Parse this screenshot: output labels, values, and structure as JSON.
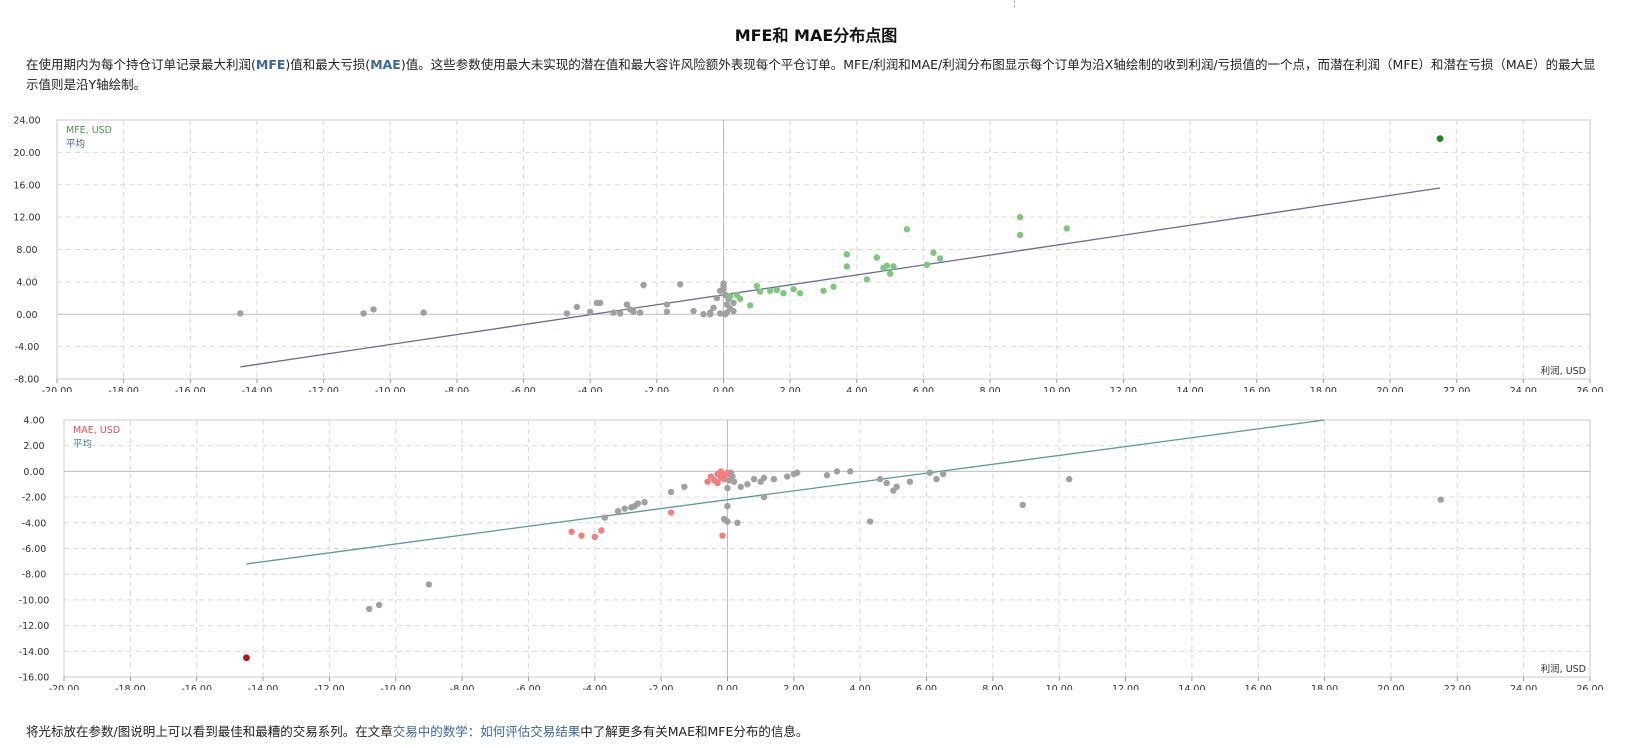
{
  "page": {
    "title": "MFE和 MAE分布点图",
    "desc_parts": [
      {
        "t": "在使用期内为每个持仓订单记录最大利润(",
        "hl": false
      },
      {
        "t": "MFE",
        "hl": true
      },
      {
        "t": ")值和最大亏损(",
        "hl": false
      },
      {
        "t": "MAE",
        "hl": true
      },
      {
        "t": ")值。这些参数使用最大未实现的潜在值和最大容许风险额外表现每个平仓订单。MFE/利润和MAE/利润分布图显示每个订单为沿X轴绘制的收到利润/亏损值的一个点，而潜在利润（MFE）和潜在亏损（MAE）的最大显示值则是沿Y轴绘制。",
        "hl": false
      }
    ],
    "footer_before": "将光标放在参数/图说明上可以看到最佳和最糟的交易系列。在文章",
    "footer_link": "交易中的数学：如何评估交易结果",
    "footer_after": "中了解更多有关MAE和MFE分布的信息。"
  },
  "chart_data": [
    {
      "type": "scatter",
      "legend_label": "MFE, USD",
      "avg_label": "平均",
      "xlabel": "利润, USD",
      "xlim": [
        -20,
        26
      ],
      "ylim": [
        -8,
        24
      ],
      "xticks": [
        "-20.00",
        "-18.00",
        "-16.00",
        "-14.00",
        "-12.00",
        "-10.00",
        "-8.00",
        "-6.00",
        "-4.00",
        "-2.00",
        "0.00",
        "2.00",
        "4.00",
        "6.00",
        "8.00",
        "10.00",
        "12.00",
        "14.00",
        "16.00",
        "18.00",
        "20.00",
        "22.00",
        "24.00",
        "26.00"
      ],
      "yticks": [
        "-8.00",
        "-4.00",
        "0.00",
        "4.00",
        "8.00",
        "12.00",
        "16.00",
        "20.00",
        "24.00"
      ],
      "colors": {
        "legend": "#4a9a4a",
        "avg": "#3a5fa0",
        "line": "#6a6a9a",
        "loss": "#a0a0a0",
        "profit": "#7cc87c",
        "best": "#1e8a1e"
      },
      "avg_line": [
        [
          -14.5,
          -6.5
        ],
        [
          21.5,
          15.6
        ]
      ],
      "best": [
        [
          21.5,
          21.7
        ]
      ],
      "loss_points": [
        [
          -14.5,
          0.1
        ],
        [
          -10.8,
          0.1
        ],
        [
          -10.5,
          0.6
        ],
        [
          -9.0,
          0.2
        ],
        [
          -4.7,
          0.1
        ],
        [
          -4.4,
          0.9
        ],
        [
          -4.0,
          0.3
        ],
        [
          -3.8,
          1.4
        ],
        [
          -3.7,
          1.4
        ],
        [
          -3.3,
          0.2
        ],
        [
          -3.1,
          0.1
        ],
        [
          -2.9,
          1.2
        ],
        [
          -2.8,
          0.6
        ],
        [
          -2.7,
          0.3
        ],
        [
          -2.5,
          0.2
        ],
        [
          -2.4,
          3.6
        ],
        [
          -1.7,
          1.2
        ],
        [
          -1.7,
          0.3
        ],
        [
          -1.3,
          3.7
        ],
        [
          -0.9,
          0.4
        ],
        [
          -0.6,
          0.0
        ],
        [
          -0.4,
          0.2
        ],
        [
          -0.3,
          0.8
        ],
        [
          -0.2,
          2.0
        ],
        [
          -0.1,
          2.9
        ],
        [
          0.0,
          3.1
        ],
        [
          0.0,
          3.8
        ],
        [
          0.0,
          3.5
        ],
        [
          0.05,
          2.4
        ],
        [
          0.05,
          0.0
        ],
        [
          0.1,
          0.2
        ],
        [
          0.1,
          1.2
        ],
        [
          0.2,
          0.7
        ],
        [
          0.3,
          0.4
        ],
        [
          0.3,
          1.4
        ],
        [
          -0.1,
          0.1
        ],
        [
          -0.4,
          0.0
        ],
        [
          0.15,
          1.9
        ]
      ],
      "profit_points": [
        [
          0.2,
          2.2
        ],
        [
          0.4,
          2.4
        ],
        [
          0.5,
          1.9
        ],
        [
          0.8,
          1.1
        ],
        [
          1.0,
          3.5
        ],
        [
          1.1,
          2.8
        ],
        [
          1.4,
          2.9
        ],
        [
          1.6,
          3.0
        ],
        [
          1.8,
          2.6
        ],
        [
          2.1,
          3.1
        ],
        [
          2.3,
          2.6
        ],
        [
          3.0,
          2.9
        ],
        [
          3.3,
          3.4
        ],
        [
          3.7,
          5.9
        ],
        [
          3.7,
          7.4
        ],
        [
          4.3,
          4.3
        ],
        [
          4.6,
          7.0
        ],
        [
          4.8,
          5.7
        ],
        [
          4.9,
          6.0
        ],
        [
          5.0,
          5.0
        ],
        [
          5.1,
          5.9
        ],
        [
          5.5,
          10.5
        ],
        [
          6.1,
          6.1
        ],
        [
          6.3,
          7.6
        ],
        [
          6.5,
          6.9
        ],
        [
          8.9,
          12.0
        ],
        [
          8.9,
          9.8
        ],
        [
          10.3,
          10.6
        ]
      ]
    },
    {
      "type": "scatter",
      "legend_label": "MAE, USD",
      "avg_label": "平均",
      "xlabel": "利润, USD",
      "xlim": [
        -20,
        26
      ],
      "ylim": [
        -16,
        4
      ],
      "xticks": [
        "-20.00",
        "-18.00",
        "-16.00",
        "-14.00",
        "-12.00",
        "-10.00",
        "-8.00",
        "-6.00",
        "-4.00",
        "-2.00",
        "0.00",
        "2.00",
        "4.00",
        "6.00",
        "8.00",
        "10.00",
        "12.00",
        "14.00",
        "16.00",
        "18.00",
        "20.00",
        "22.00",
        "24.00",
        "26.00"
      ],
      "yticks": [
        "-16.00",
        "-14.00",
        "-12.00",
        "-10.00",
        "-8.00",
        "-6.00",
        "-4.00",
        "-2.00",
        "0.00",
        "2.00",
        "4.00"
      ],
      "colors": {
        "legend": "#e05050",
        "avg": "#3a8a8a",
        "line": "#5a9a9a",
        "loss": "#f08080",
        "profit": "#a0a0a0",
        "worst": "#b01818"
      },
      "avg_line": [
        [
          -14.5,
          -7.2
        ],
        [
          18.0,
          4.0
        ]
      ],
      "worst": [
        [
          -14.5,
          -14.5
        ]
      ],
      "loss_points": [
        [
          -4.7,
          -4.7
        ],
        [
          -4.4,
          -5.0
        ],
        [
          -4.0,
          -5.1
        ],
        [
          -3.8,
          -4.6
        ],
        [
          -1.7,
          -3.2
        ],
        [
          -0.6,
          -0.8
        ],
        [
          -0.5,
          -0.4
        ],
        [
          -0.4,
          -0.7
        ],
        [
          -0.3,
          -0.2
        ],
        [
          -0.3,
          -0.9
        ],
        [
          -0.2,
          -0.5
        ],
        [
          -0.2,
          0.0
        ],
        [
          -0.15,
          -5.0
        ],
        [
          -0.1,
          -0.3
        ],
        [
          -0.1,
          -0.6
        ],
        [
          0.0,
          -0.1
        ]
      ],
      "profit_points": [
        [
          -10.8,
          -10.7
        ],
        [
          -10.5,
          -10.4
        ],
        [
          -9.0,
          -8.8
        ],
        [
          -3.7,
          -3.6
        ],
        [
          -3.3,
          -3.1
        ],
        [
          -3.1,
          -2.9
        ],
        [
          -2.9,
          -2.8
        ],
        [
          -2.8,
          -2.7
        ],
        [
          -2.7,
          -2.5
        ],
        [
          -2.5,
          -2.4
        ],
        [
          -1.7,
          -1.6
        ],
        [
          -1.3,
          -1.2
        ],
        [
          -0.1,
          -3.7
        ],
        [
          0.0,
          -3.9
        ],
        [
          0.0,
          -2.7
        ],
        [
          0.0,
          -1.3
        ],
        [
          0.05,
          -0.7
        ],
        [
          0.05,
          -0.2
        ],
        [
          0.1,
          -0.1
        ],
        [
          0.15,
          -0.4
        ],
        [
          0.2,
          -0.8
        ],
        [
          0.3,
          -4.0
        ],
        [
          0.4,
          -1.2
        ],
        [
          0.6,
          -1.0
        ],
        [
          0.8,
          -0.6
        ],
        [
          1.0,
          -0.8
        ],
        [
          1.1,
          -2.0
        ],
        [
          1.1,
          -0.5
        ],
        [
          1.4,
          -0.6
        ],
        [
          1.8,
          -0.4
        ],
        [
          2.0,
          -0.2
        ],
        [
          2.1,
          -0.1
        ],
        [
          3.0,
          -0.3
        ],
        [
          3.3,
          0.0
        ],
        [
          3.7,
          0.0
        ],
        [
          4.3,
          -3.9
        ],
        [
          4.6,
          -0.6
        ],
        [
          4.8,
          -0.9
        ],
        [
          5.0,
          -1.5
        ],
        [
          5.1,
          -1.2
        ],
        [
          5.5,
          -0.8
        ],
        [
          6.1,
          -0.1
        ],
        [
          6.3,
          -0.6
        ],
        [
          6.5,
          -0.2
        ],
        [
          8.9,
          -2.6
        ],
        [
          10.3,
          -0.6
        ],
        [
          21.5,
          -2.2
        ]
      ]
    }
  ]
}
